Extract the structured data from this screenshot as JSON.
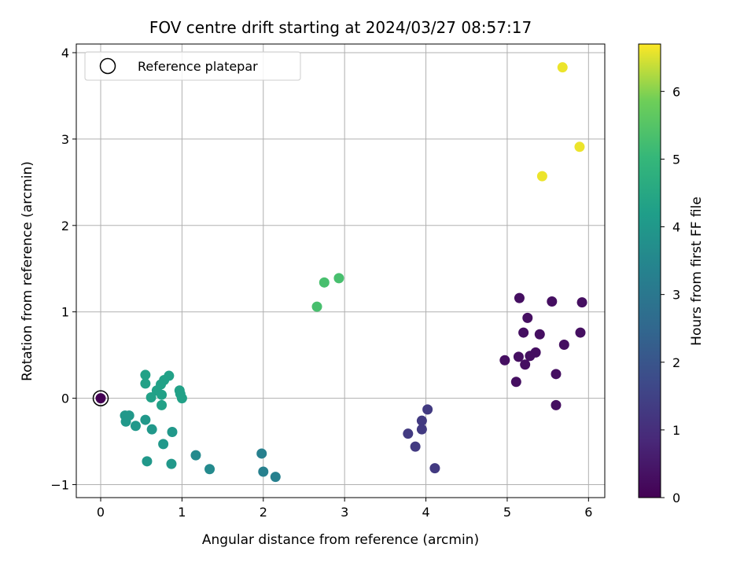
{
  "chart_data": {
    "type": "scatter",
    "title": "FOV centre drift starting at 2024/03/27 08:57:17",
    "xlabel": "Angular distance from reference (arcmin)",
    "ylabel": "Rotation from reference (arcmin)",
    "xlim": [
      -0.3,
      6.2
    ],
    "ylim": [
      -1.15,
      4.1
    ],
    "xticks": [
      0,
      1,
      2,
      3,
      4,
      5,
      6
    ],
    "yticks": [
      -1,
      0,
      1,
      2,
      3,
      4
    ],
    "grid": true,
    "legend": {
      "placement": "top-left",
      "entries": [
        "Reference platepar"
      ]
    },
    "reference_point": {
      "x": 0,
      "y": 0
    },
    "colorbar": {
      "label": "Hours from first FF file",
      "range": [
        0,
        6.7
      ],
      "ticks": [
        0,
        1,
        2,
        3,
        4,
        5,
        6
      ],
      "colormap": "viridis"
    },
    "points": [
      {
        "x": 0.0,
        "y": 0.0,
        "c": 0.0
      },
      {
        "x": 5.15,
        "y": 1.16,
        "c": 0.3
      },
      {
        "x": 5.55,
        "y": 1.12,
        "c": 0.3
      },
      {
        "x": 5.92,
        "y": 1.11,
        "c": 0.3
      },
      {
        "x": 5.25,
        "y": 0.93,
        "c": 0.3
      },
      {
        "x": 5.2,
        "y": 0.76,
        "c": 0.3
      },
      {
        "x": 5.4,
        "y": 0.74,
        "c": 0.3
      },
      {
        "x": 5.9,
        "y": 0.76,
        "c": 0.3
      },
      {
        "x": 5.7,
        "y": 0.62,
        "c": 0.3
      },
      {
        "x": 5.35,
        "y": 0.53,
        "c": 0.3
      },
      {
        "x": 5.28,
        "y": 0.49,
        "c": 0.3
      },
      {
        "x": 5.14,
        "y": 0.48,
        "c": 0.3
      },
      {
        "x": 4.97,
        "y": 0.44,
        "c": 0.3
      },
      {
        "x": 5.22,
        "y": 0.39,
        "c": 0.3
      },
      {
        "x": 5.6,
        "y": 0.28,
        "c": 0.3
      },
      {
        "x": 5.11,
        "y": 0.19,
        "c": 0.3
      },
      {
        "x": 5.6,
        "y": -0.08,
        "c": 0.3
      },
      {
        "x": 4.02,
        "y": -0.13,
        "c": 1.3
      },
      {
        "x": 3.95,
        "y": -0.26,
        "c": 1.3
      },
      {
        "x": 3.95,
        "y": -0.36,
        "c": 1.3
      },
      {
        "x": 3.78,
        "y": -0.41,
        "c": 1.3
      },
      {
        "x": 3.87,
        "y": -0.56,
        "c": 1.3
      },
      {
        "x": 4.11,
        "y": -0.81,
        "c": 1.3
      },
      {
        "x": 1.98,
        "y": -0.64,
        "c": 3.3
      },
      {
        "x": 2.0,
        "y": -0.85,
        "c": 3.3
      },
      {
        "x": 2.15,
        "y": -0.91,
        "c": 3.3
      },
      {
        "x": 1.17,
        "y": -0.66,
        "c": 3.6
      },
      {
        "x": 1.34,
        "y": -0.82,
        "c": 3.6
      },
      {
        "x": 0.3,
        "y": -0.2,
        "c": 4.0
      },
      {
        "x": 0.35,
        "y": -0.2,
        "c": 4.0
      },
      {
        "x": 0.31,
        "y": -0.27,
        "c": 4.0
      },
      {
        "x": 0.43,
        "y": -0.32,
        "c": 4.0
      },
      {
        "x": 0.55,
        "y": -0.25,
        "c": 4.0
      },
      {
        "x": 0.63,
        "y": -0.36,
        "c": 4.0
      },
      {
        "x": 0.88,
        "y": -0.39,
        "c": 4.0
      },
      {
        "x": 0.77,
        "y": -0.53,
        "c": 4.0
      },
      {
        "x": 0.57,
        "y": -0.73,
        "c": 4.0
      },
      {
        "x": 0.87,
        "y": -0.76,
        "c": 4.0
      },
      {
        "x": 0.55,
        "y": 0.27,
        "c": 4.3
      },
      {
        "x": 0.84,
        "y": 0.26,
        "c": 4.3
      },
      {
        "x": 0.78,
        "y": 0.21,
        "c": 4.3
      },
      {
        "x": 0.55,
        "y": 0.17,
        "c": 4.3
      },
      {
        "x": 0.74,
        "y": 0.16,
        "c": 4.3
      },
      {
        "x": 0.69,
        "y": 0.09,
        "c": 4.3
      },
      {
        "x": 0.97,
        "y": 0.09,
        "c": 4.3
      },
      {
        "x": 0.98,
        "y": 0.05,
        "c": 4.3
      },
      {
        "x": 0.62,
        "y": 0.01,
        "c": 4.3
      },
      {
        "x": 0.75,
        "y": 0.04,
        "c": 4.3
      },
      {
        "x": 1.0,
        "y": 0.0,
        "c": 4.3
      },
      {
        "x": 0.75,
        "y": -0.08,
        "c": 4.3
      },
      {
        "x": 2.66,
        "y": 1.06,
        "c": 5.3
      },
      {
        "x": 2.75,
        "y": 1.34,
        "c": 5.3
      },
      {
        "x": 2.93,
        "y": 1.39,
        "c": 5.3
      },
      {
        "x": 5.68,
        "y": 3.83,
        "c": 6.6
      },
      {
        "x": 5.89,
        "y": 2.91,
        "c": 6.6
      },
      {
        "x": 5.43,
        "y": 2.57,
        "c": 6.6
      }
    ]
  }
}
